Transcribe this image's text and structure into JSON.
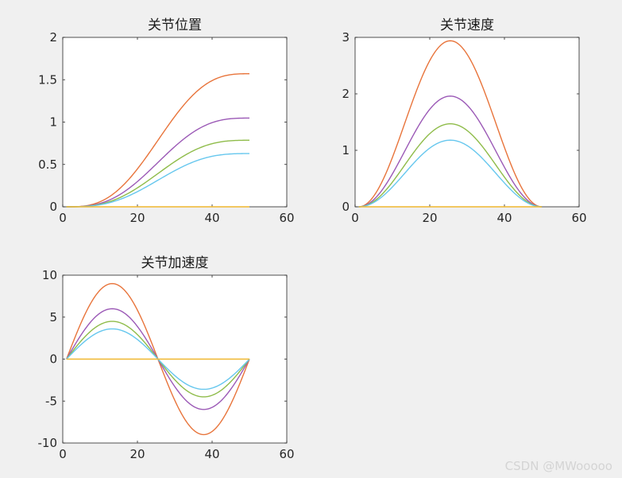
{
  "figure": {
    "background": "#f0f0f0",
    "watermark": "CSDN @MWooooo"
  },
  "series_colors": [
    "#e8743b",
    "#9b59b6",
    "#8fbc4a",
    "#66c7ee",
    "#f0b72f"
  ],
  "chart_data": [
    {
      "type": "line",
      "title": "关节位置",
      "xlabel": "",
      "ylabel": "",
      "xlim": [
        0,
        60
      ],
      "ylim": [
        0,
        2
      ],
      "xticks": [
        0,
        20,
        40,
        60
      ],
      "yticks": [
        0,
        0.5,
        1,
        1.5,
        2
      ],
      "ytick_labels": [
        "0",
        "0.5",
        "1",
        "1.5",
        "2"
      ],
      "x": [
        1,
        50
      ],
      "curve": "cycloid_position",
      "series": [
        {
          "amplitude": 1.5708,
          "color": "#e8743b"
        },
        {
          "amplitude": 1.0472,
          "color": "#9b59b6"
        },
        {
          "amplitude": 0.7854,
          "color": "#8fbc4a"
        },
        {
          "amplitude": 0.6283,
          "color": "#66c7ee"
        },
        {
          "amplitude": 0,
          "color": "#f0b72f"
        }
      ]
    },
    {
      "type": "line",
      "title": "关节速度",
      "xlabel": "",
      "ylabel": "",
      "xlim": [
        0,
        60
      ],
      "ylim": [
        0,
        3
      ],
      "xticks": [
        0,
        20,
        40,
        60
      ],
      "yticks": [
        0,
        1,
        2,
        3
      ],
      "ytick_labels": [
        "0",
        "1",
        "2",
        "3"
      ],
      "x": [
        1,
        50
      ],
      "curve": "cycloid_velocity",
      "series": [
        {
          "peak": 2.94,
          "color": "#e8743b"
        },
        {
          "peak": 1.96,
          "color": "#9b59b6"
        },
        {
          "peak": 1.47,
          "color": "#8fbc4a"
        },
        {
          "peak": 1.18,
          "color": "#66c7ee"
        },
        {
          "peak": 0,
          "color": "#f0b72f"
        }
      ]
    },
    {
      "type": "line",
      "title": "关节加速度",
      "xlabel": "",
      "ylabel": "",
      "xlim": [
        0,
        60
      ],
      "ylim": [
        -10,
        10
      ],
      "xticks": [
        0,
        20,
        40,
        60
      ],
      "yticks": [
        -10,
        -5,
        0,
        5,
        10
      ],
      "ytick_labels": [
        "-10",
        "-5",
        "0",
        "5",
        "10"
      ],
      "x": [
        1,
        50
      ],
      "curve": "cycloid_acceleration",
      "series": [
        {
          "peak": 9.0,
          "color": "#e8743b"
        },
        {
          "peak": 6.0,
          "color": "#9b59b6"
        },
        {
          "peak": 4.5,
          "color": "#8fbc4a"
        },
        {
          "peak": 3.6,
          "color": "#66c7ee"
        },
        {
          "peak": 0,
          "color": "#f0b72f"
        }
      ]
    }
  ]
}
